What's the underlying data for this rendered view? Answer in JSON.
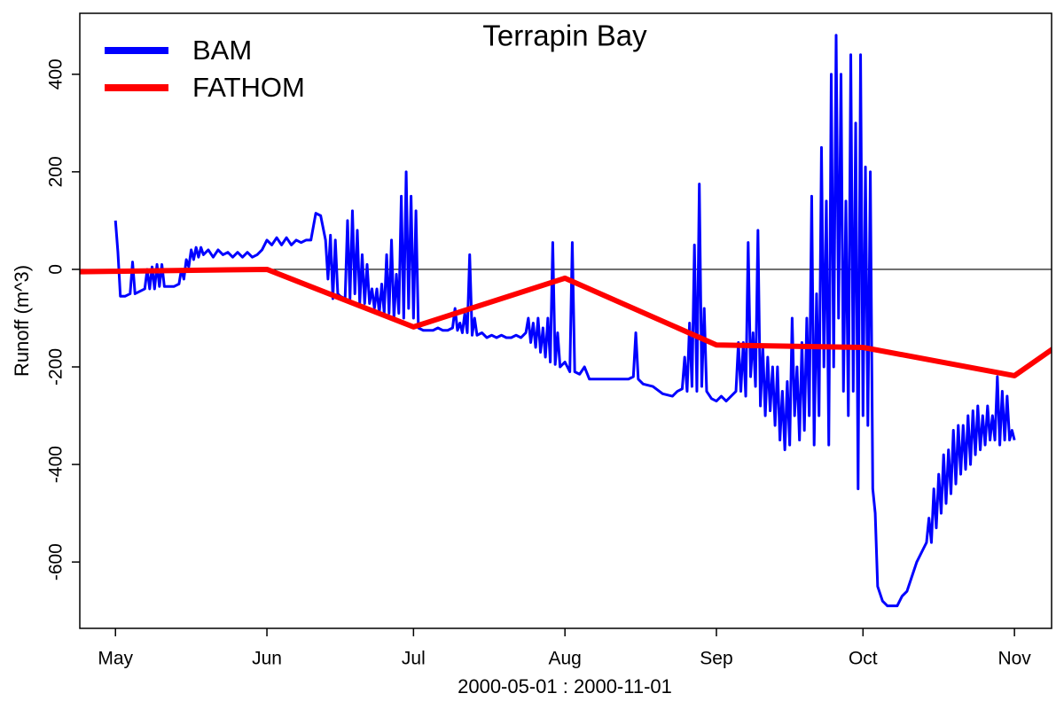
{
  "chart_data": {
    "type": "line",
    "title": "Terrapin Bay",
    "xlabel": "2000-05-01 : 2000-11-01",
    "ylabel": "Runoff (m^3)",
    "xlim": [
      -7.3,
      191.6
    ],
    "ylim": [
      -736,
      525
    ],
    "xticks": [
      {
        "value": 0,
        "label": "May"
      },
      {
        "value": 31,
        "label": "Jun"
      },
      {
        "value": 61,
        "label": "Jul"
      },
      {
        "value": 92,
        "label": "Aug"
      },
      {
        "value": 123,
        "label": "Sep"
      },
      {
        "value": 153,
        "label": "Oct"
      },
      {
        "value": 184,
        "label": "Nov"
      }
    ],
    "yticks": [
      -600,
      -400,
      -200,
      0,
      200,
      400
    ],
    "hline": 0,
    "grid": false,
    "legend": "top-left",
    "series": [
      {
        "name": "BAM",
        "color": "#0000ff",
        "width": 3,
        "x": [
          0,
          0.5,
          1,
          2,
          3,
          3.5,
          4,
          5,
          6,
          6.5,
          7,
          7.5,
          8,
          8.5,
          9,
          9.5,
          10,
          11,
          12,
          13,
          13.5,
          14,
          14.5,
          15,
          15.5,
          16,
          16.5,
          17,
          17.5,
          18,
          19,
          20,
          21,
          22,
          23,
          24,
          25,
          26,
          27,
          28,
          29,
          30,
          31,
          32,
          33,
          34,
          35,
          36,
          37,
          38,
          39,
          40,
          41,
          42,
          43,
          43.5,
          44,
          44.5,
          45,
          45.5,
          46,
          47,
          47.5,
          48,
          48.5,
          49,
          49.5,
          50,
          50.5,
          51,
          51.5,
          52,
          52.5,
          53,
          53.5,
          54,
          54.5,
          55,
          55.5,
          56,
          56.5,
          57,
          57.5,
          58,
          58.5,
          59,
          59.5,
          60,
          60.5,
          61,
          61.5,
          62,
          63,
          64,
          65,
          66,
          67,
          68,
          69,
          69.5,
          70,
          70.5,
          71,
          71.5,
          72,
          72.5,
          73,
          73.5,
          74,
          75,
          76,
          77,
          78,
          79,
          80,
          81,
          82,
          83,
          84,
          84.5,
          85,
          85.5,
          86,
          86.5,
          87,
          87.5,
          88,
          88.5,
          89,
          89.5,
          90,
          90.5,
          91,
          92,
          93,
          93.5,
          94,
          95,
          96,
          97,
          100,
          105,
          106,
          106.5,
          107,
          108,
          110,
          112,
          114,
          115,
          116,
          116.5,
          117,
          117.5,
          118,
          118.5,
          119,
          119.5,
          120,
          120.5,
          121,
          122,
          123,
          124,
          125,
          126,
          127,
          127.5,
          128,
          128.5,
          129,
          129.5,
          130,
          130.5,
          131,
          131.5,
          132,
          132.5,
          133,
          133.5,
          134,
          134.5,
          135,
          135.5,
          136,
          136.5,
          137,
          137.5,
          138,
          138.5,
          139,
          139.5,
          140,
          140.5,
          141,
          141.5,
          142,
          142.5,
          143,
          143.5,
          144,
          144.5,
          145,
          145.5,
          146,
          146.5,
          147,
          147.5,
          148,
          148.5,
          149,
          149.5,
          150,
          150.5,
          151,
          151.5,
          152,
          152.5,
          153,
          153.5,
          154,
          154.5,
          155,
          155.5,
          156,
          157,
          158,
          160,
          161,
          162,
          163,
          164,
          165,
          166,
          166.5,
          167,
          167.5,
          168,
          168.5,
          169,
          169.5,
          170,
          170.5,
          171,
          171.5,
          172,
          172.5,
          173,
          173.5,
          174,
          174.5,
          175,
          175.5,
          176,
          176.5,
          177,
          177.5,
          178,
          178.5,
          179,
          179.5,
          180,
          180.5,
          181,
          181.5,
          182,
          182.5,
          183,
          183.5,
          184
        ],
        "values": [
          100,
          35,
          -55,
          -55,
          -50,
          15,
          -50,
          -45,
          -40,
          0,
          -40,
          5,
          -40,
          10,
          -35,
          10,
          -35,
          -35,
          -35,
          -30,
          0,
          -20,
          20,
          5,
          40,
          20,
          45,
          25,
          45,
          30,
          40,
          25,
          40,
          30,
          35,
          25,
          35,
          25,
          35,
          25,
          30,
          40,
          60,
          50,
          65,
          50,
          65,
          50,
          60,
          55,
          60,
          60,
          115,
          110,
          60,
          -20,
          70,
          -60,
          60,
          -50,
          -55,
          -60,
          100,
          -60,
          120,
          -50,
          80,
          -70,
          30,
          -70,
          10,
          -70,
          -40,
          -80,
          -40,
          -90,
          -30,
          -90,
          30,
          -90,
          60,
          -100,
          -10,
          -90,
          150,
          -100,
          200,
          -80,
          150,
          -100,
          120,
          -120,
          -125,
          -125,
          -125,
          -120,
          -125,
          -125,
          -120,
          -80,
          -125,
          -110,
          -130,
          -90,
          -130,
          30,
          -135,
          -100,
          -135,
          -130,
          -140,
          -135,
          -140,
          -135,
          -140,
          -140,
          -135,
          -140,
          -130,
          -100,
          -150,
          -110,
          -160,
          -100,
          -170,
          -120,
          -180,
          -100,
          -190,
          55,
          -195,
          -130,
          -200,
          -190,
          -210,
          55,
          -210,
          -215,
          -200,
          -225,
          -225,
          -225,
          -220,
          -130,
          -225,
          -235,
          -240,
          -255,
          -260,
          -250,
          -245,
          -180,
          -250,
          -110,
          -240,
          50,
          -250,
          175,
          -240,
          -80,
          -250,
          -265,
          -270,
          -260,
          -270,
          -260,
          -250,
          -150,
          -250,
          -150,
          -260,
          55,
          -220,
          -130,
          -240,
          80,
          -280,
          -160,
          -300,
          -180,
          -290,
          -200,
          -320,
          -200,
          -350,
          -250,
          -370,
          -230,
          -360,
          -100,
          -300,
          -200,
          -350,
          -150,
          -330,
          -100,
          -300,
          150,
          -360,
          -50,
          -300,
          250,
          -200,
          140,
          -360,
          400,
          -200,
          480,
          -100,
          400,
          -250,
          140,
          -300,
          440,
          -250,
          300,
          -450,
          440,
          -300,
          210,
          -320,
          200,
          -450,
          -500,
          -650,
          -680,
          -690,
          -690,
          -670,
          -660,
          -630,
          -600,
          -580,
          -560,
          -510,
          -560,
          -450,
          -530,
          -420,
          -500,
          -380,
          -480,
          -370,
          -460,
          -330,
          -440,
          -320,
          -420,
          -320,
          -410,
          -300,
          -400,
          -290,
          -380,
          -280,
          -370,
          -300,
          -360,
          -280,
          -350,
          -300,
          -350,
          -220,
          -360,
          -250,
          -350,
          -260,
          -350,
          -330,
          -350
        ]
      },
      {
        "name": "FATHOM",
        "color": "#ff0000",
        "width": 6,
        "x": [
          -30,
          0,
          31,
          61,
          92,
          123,
          153,
          184,
          214
        ],
        "values": [
          -8,
          -4,
          0,
          -118,
          -18,
          -155,
          -160,
          -218,
          -8
        ]
      }
    ]
  }
}
